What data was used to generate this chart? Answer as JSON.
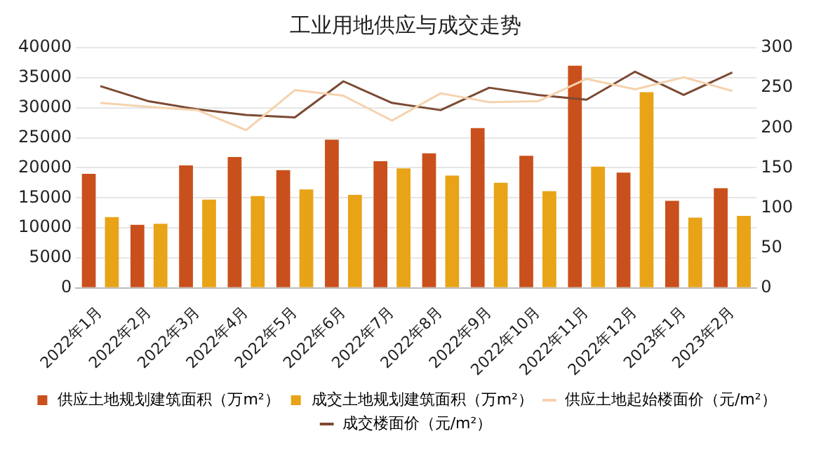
{
  "chart_data": {
    "type": "bar",
    "title": "工业用地供应与成交走势",
    "categories": [
      "2022年1月",
      "2022年2月",
      "2022年3月",
      "2022年4月",
      "2022年5月",
      "2022年6月",
      "2022年7月",
      "2022年8月",
      "2022年9月",
      "2022年10月",
      "2022年11月",
      "2022年12月",
      "2023年1月",
      "2023年2月"
    ],
    "series": [
      {
        "name": "供应土地规划建筑面积（万m²）",
        "color": "#c9501c",
        "values": [
          19000,
          10500,
          20400,
          21800,
          19600,
          24700,
          21100,
          22400,
          26600,
          22000,
          37000,
          19200,
          14500,
          16600
        ]
      },
      {
        "name": "成交土地规划建筑面积（万m²）",
        "color": "#e8a317",
        "values": [
          11800,
          10700,
          14700,
          15300,
          16400,
          15500,
          19900,
          18700,
          17500,
          16100,
          20200,
          32600,
          11700,
          12000
        ]
      },
      {
        "name": "供应土地起始楼面价（元/m²）",
        "type": "line",
        "axis": "y2",
        "color": "#f5d2ad",
        "values": [
          231,
          226,
          222,
          197,
          247,
          240,
          209,
          243,
          232,
          233,
          261,
          248,
          263,
          246
        ]
      },
      {
        "name": "成交楼面价（元/m²）",
        "type": "line",
        "axis": "y2",
        "color": "#7b4a32",
        "values": [
          252,
          233,
          223,
          216,
          213,
          258,
          231,
          222,
          250,
          241,
          235,
          270,
          241,
          269
        ]
      }
    ],
    "ylim": [
      0,
      40000
    ],
    "yticks": [
      0,
      5000,
      10000,
      15000,
      20000,
      25000,
      30000,
      35000,
      40000
    ],
    "y2lim": [
      0,
      300
    ],
    "y2ticks": [
      0,
      50,
      100,
      150,
      200,
      250,
      300
    ],
    "grid": "y",
    "legend": "bottom",
    "marker": "none",
    "line_style": "solid"
  }
}
